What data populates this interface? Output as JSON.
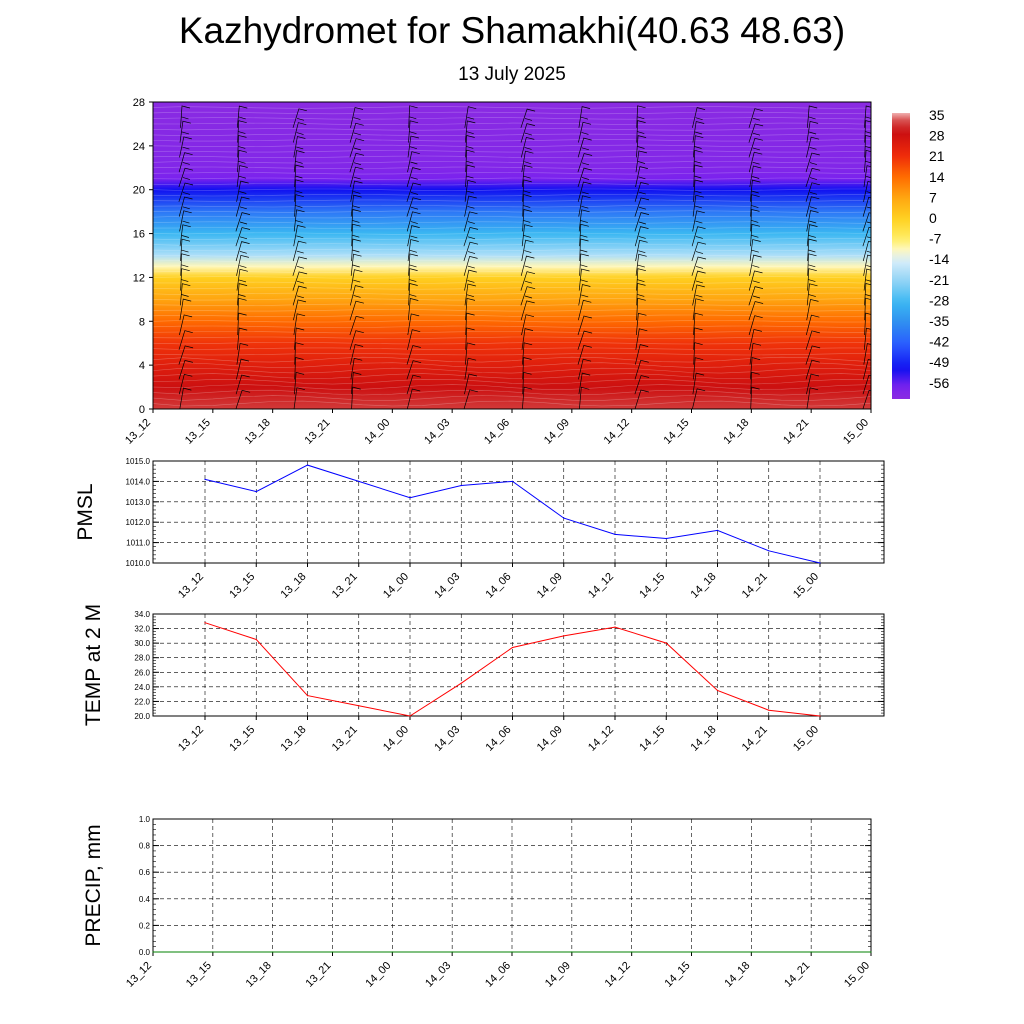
{
  "title": "Kazhydromet for Shamakhi(40.63 48.63)",
  "subtitle": "13 July 2025",
  "colors": {
    "pmsl_line": "#0000ff",
    "temp_line": "#ff0000",
    "precip_line": "#008000"
  },
  "chart_data": [
    {
      "type": "heatmap",
      "name": "temperature-wind-profile",
      "x_ticks": [
        "13_12",
        "13_15",
        "13_18",
        "13_21",
        "14_00",
        "14_03",
        "14_06",
        "14_09",
        "14_12",
        "14_15",
        "14_18",
        "14_21",
        "15_00"
      ],
      "y_ticks": [
        0,
        4,
        8,
        12,
        16,
        20,
        24,
        28
      ],
      "ylim": [
        0,
        28
      ],
      "colorbar_labels": [
        "35",
        "28",
        "21",
        "14",
        "7",
        "0",
        "-7",
        "-14",
        "-21",
        "-28",
        "-35",
        "-42",
        "-49",
        "-56"
      ],
      "temperature_profile": [
        {
          "level": 0,
          "value": 32
        },
        {
          "level": 2,
          "value": 28
        },
        {
          "level": 4,
          "value": 24
        },
        {
          "level": 6,
          "value": 20
        },
        {
          "level": 8,
          "value": 14
        },
        {
          "level": 10,
          "value": 7
        },
        {
          "level": 12,
          "value": 0
        },
        {
          "level": 13,
          "value": -10
        },
        {
          "level": 14,
          "value": -18
        },
        {
          "level": 16,
          "value": -28
        },
        {
          "level": 18,
          "value": -38
        },
        {
          "level": 20,
          "value": -50
        },
        {
          "level": 21,
          "value": -56
        },
        {
          "level": 22,
          "value": -58
        },
        {
          "level": 28,
          "value": -60
        }
      ],
      "grid": false
    },
    {
      "type": "line",
      "name": "pmsl",
      "ylabel": "PMSL",
      "x": [
        "13_12",
        "13_15",
        "13_18",
        "13_21",
        "14_00",
        "14_03",
        "14_06",
        "14_09",
        "14_12",
        "14_15",
        "14_18",
        "14_21",
        "15_00"
      ],
      "values": [
        1014.1,
        1013.5,
        1014.8,
        1014.0,
        1013.2,
        1013.8,
        1014.0,
        1012.2,
        1011.4,
        1011.2,
        1011.6,
        1010.6,
        1010.0
      ],
      "y_ticks": [
        "1015.0",
        "1014.0",
        "1013.0",
        "1012.0",
        "1011.0",
        "1010.0"
      ],
      "ylim": [
        1010,
        1015
      ],
      "grid": true
    },
    {
      "type": "line",
      "name": "temp-2m",
      "ylabel": "TEMP at 2 M",
      "x": [
        "13_12",
        "13_15",
        "13_18",
        "13_21",
        "14_00",
        "14_03",
        "14_06",
        "14_09",
        "14_12",
        "14_15",
        "14_18",
        "14_21",
        "15_00"
      ],
      "values": [
        32.8,
        30.5,
        22.8,
        21.4,
        20.0,
        24.5,
        29.4,
        31.0,
        32.2,
        30.0,
        23.5,
        20.8,
        20.0
      ],
      "y_ticks": [
        "34.0",
        "32.0",
        "30.0",
        "28.0",
        "26.0",
        "24.0",
        "22.0",
        "20.0"
      ],
      "ylim": [
        20,
        34
      ],
      "grid": true
    },
    {
      "type": "line",
      "name": "precip",
      "ylabel": "PRECIP, mm",
      "x": [
        "13_12",
        "13_15",
        "13_18",
        "13_21",
        "14_00",
        "14_03",
        "14_06",
        "14_09",
        "14_12",
        "14_15",
        "14_18",
        "14_21",
        "15_00"
      ],
      "values": [
        0,
        0,
        0,
        0,
        0,
        0,
        0,
        0,
        0,
        0,
        0,
        0,
        0
      ],
      "y_ticks": [
        "1.0",
        "0.8",
        "0.6",
        "0.4",
        "0.2",
        "0.0"
      ],
      "ylim": [
        0,
        1
      ],
      "grid": true
    }
  ]
}
